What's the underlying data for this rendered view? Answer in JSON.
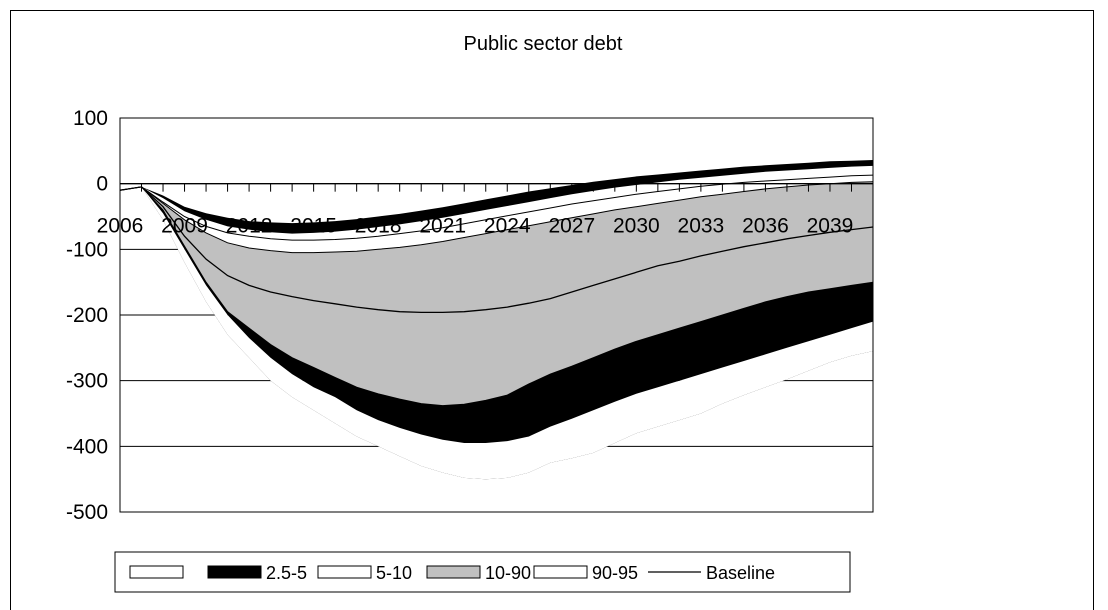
{
  "chart_data": {
    "type": "area",
    "title": "Public sector debt",
    "xlabel": "",
    "ylabel": "",
    "ylim": [
      -500,
      100
    ],
    "xlim": [
      2006,
      2041
    ],
    "x_tick_labels": [
      "2006",
      "2009",
      "2012",
      "2015",
      "2018",
      "2021",
      "2024",
      "2027",
      "2030",
      "2033",
      "2036",
      "2039"
    ],
    "y_tick_labels": [
      "100",
      "0",
      "-100",
      "-200",
      "-300",
      "-400",
      "-500"
    ],
    "x": [
      2006,
      2007,
      2008,
      2009,
      2010,
      2011,
      2012,
      2013,
      2014,
      2015,
      2016,
      2017,
      2018,
      2019,
      2020,
      2021,
      2022,
      2023,
      2024,
      2025,
      2026,
      2027,
      2028,
      2029,
      2030,
      2031,
      2032,
      2033,
      2034,
      2035,
      2036,
      2037,
      2038,
      2039,
      2040,
      2041
    ],
    "series": [
      {
        "name": "",
        "role": "p0",
        "values": [
          -10,
          -5,
          -50,
          -110,
          -170,
          -220,
          -255,
          -285,
          -310,
          -330,
          -350,
          -370,
          -385,
          -395,
          -405,
          -410,
          -408,
          -403,
          -395,
          -385,
          -375,
          -363,
          -350,
          -340,
          -325,
          -315,
          -305,
          -295,
          -285,
          -275,
          -265,
          -255,
          -245,
          -235,
          -225,
          -215
        ]
      },
      {
        "name": "2.5-5",
        "role": "p2_5",
        "values": [
          -10,
          -5,
          -55,
          -120,
          -180,
          -230,
          -265,
          -300,
          -325,
          -345,
          -365,
          -385,
          -400,
          -415,
          -430,
          -440,
          -448,
          -450,
          -448,
          -440,
          -425,
          -418,
          -410,
          -395,
          -380,
          -370,
          -360,
          -350,
          -335,
          -322,
          -310,
          -298,
          -285,
          -272,
          -262,
          -255
        ]
      },
      {
        "name": "5-10",
        "role": "p5",
        "values": [
          -10,
          -5,
          -45,
          -100,
          -155,
          -200,
          -235,
          -265,
          -290,
          -310,
          -325,
          -345,
          -360,
          -372,
          -382,
          -390,
          -395,
          -395,
          -392,
          -385,
          -370,
          -358,
          -345,
          -332,
          -320,
          -310,
          -300,
          -290,
          -280,
          -270,
          -260,
          -250,
          -240,
          -230,
          -220,
          -210
        ]
      },
      {
        "name": "10-90",
        "role": "p10",
        "values": [
          -10,
          -5,
          -40,
          -95,
          -150,
          -195,
          -220,
          -245,
          -265,
          -280,
          -295,
          -310,
          -320,
          -328,
          -335,
          -338,
          -336,
          -330,
          -322,
          -305,
          -290,
          -278,
          -265,
          -252,
          -240,
          -230,
          -220,
          -210,
          -200,
          -190,
          -180,
          -172,
          -165,
          -160,
          -155,
          -150
        ]
      },
      {
        "name": "",
        "role": "p90",
        "values": [
          -10,
          -5,
          -30,
          -55,
          -75,
          -90,
          -98,
          -102,
          -105,
          -105,
          -104,
          -103,
          -100,
          -97,
          -93,
          -88,
          -82,
          -76,
          -70,
          -64,
          -58,
          -52,
          -46,
          -40,
          -35,
          -30,
          -25,
          -20,
          -16,
          -12,
          -8,
          -5,
          -2,
          0,
          2,
          3
        ]
      },
      {
        "name": "90-95",
        "role": "p95",
        "values": [
          -10,
          -5,
          -28,
          -50,
          -65,
          -75,
          -80,
          -84,
          -86,
          -86,
          -85,
          -83,
          -80,
          -76,
          -72,
          -67,
          -61,
          -55,
          -49,
          -43,
          -37,
          -31,
          -26,
          -21,
          -16,
          -12,
          -8,
          -4,
          -1,
          2,
          4,
          6,
          8,
          10,
          12,
          13
        ]
      },
      {
        "name": "",
        "role": "p97_5",
        "values": [
          -10,
          -5,
          -22,
          -42,
          -55,
          -65,
          -70,
          -74,
          -76,
          -75,
          -73,
          -70,
          -66,
          -62,
          -57,
          -52,
          -46,
          -40,
          -34,
          -28,
          -22,
          -16,
          -11,
          -6,
          -2,
          2,
          6,
          9,
          12,
          15,
          18,
          20,
          22,
          24,
          26,
          27
        ]
      },
      {
        "name": "",
        "role": "p100",
        "values": [
          -10,
          -5,
          -18,
          -35,
          -45,
          -52,
          -57,
          -59,
          -60,
          -59,
          -57,
          -54,
          -50,
          -46,
          -41,
          -36,
          -30,
          -24,
          -18,
          -12,
          -7,
          -2,
          3,
          7,
          11,
          14,
          17,
          20,
          23,
          26,
          28,
          30,
          32,
          34,
          35,
          36
        ]
      },
      {
        "name": "Baseline",
        "role": "baseline",
        "values": [
          -10,
          -5,
          -35,
          -80,
          -115,
          -140,
          -155,
          -165,
          -172,
          -178,
          -183,
          -188,
          -192,
          -195,
          -196,
          -196,
          -195,
          -192,
          -188,
          -182,
          -175,
          -165,
          -155,
          -145,
          -135,
          -125,
          -118,
          -110,
          -103,
          -96,
          -90,
          -84,
          -79,
          -74,
          -70,
          -66
        ]
      }
    ],
    "legend_position": "bottom",
    "legend": [
      {
        "label": "",
        "style": "white"
      },
      {
        "label": "2.5-5",
        "style": "black"
      },
      {
        "label": "5-10",
        "style": "white"
      },
      {
        "label": "10-90",
        "style": "gray"
      },
      {
        "label": "90-95",
        "style": "white"
      },
      {
        "label": "Baseline",
        "style": "line"
      }
    ],
    "colors": {
      "black_band": "#000000",
      "gray_band": "#c0c0c0",
      "white_band": "#ffffff",
      "line": "#000000",
      "grid": "#000000"
    },
    "grid": true
  }
}
